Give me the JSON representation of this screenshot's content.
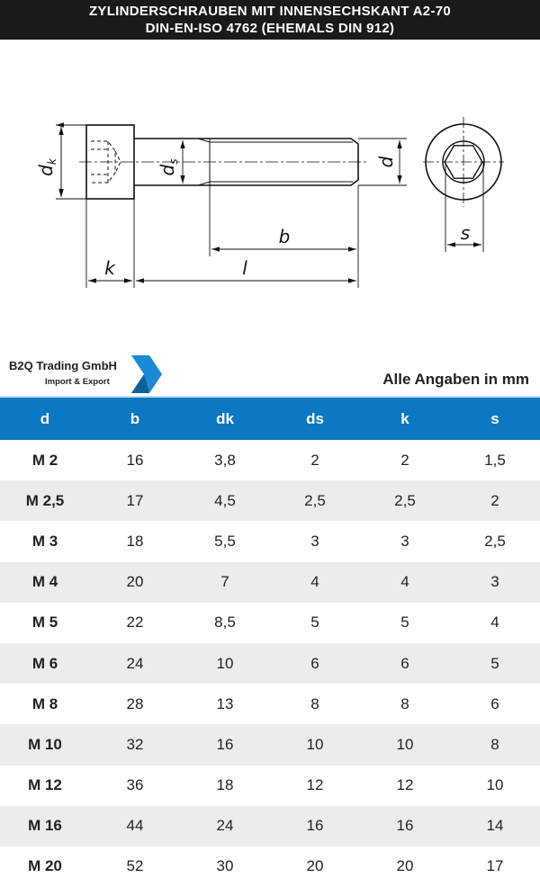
{
  "header": {
    "title_line1": "ZYLINDERSCHRAUBEN MIT INNENSECHSKANT A2-70",
    "title_line2": "DIN-EN-ISO 4762 (EHEMALS DIN 912)"
  },
  "drawing": {
    "labels": {
      "dk": "d",
      "dk_sub": "k",
      "ds": "d",
      "ds_sub": "s",
      "d": "d",
      "b": "b",
      "l": "l",
      "k": "k",
      "s": "s"
    }
  },
  "brand": {
    "name": "B2Q Trading GmbH",
    "tagline": "Import & Export",
    "color": "#1b8ad6"
  },
  "unit_note": "Alle Angaben in mm",
  "table": {
    "header_color": "#0a78c2",
    "columns": [
      "d",
      "b",
      "dk",
      "ds",
      "k",
      "s"
    ],
    "rows": [
      [
        "M 2",
        "16",
        "3,8",
        "2",
        "2",
        "1,5"
      ],
      [
        "M 2,5",
        "17",
        "4,5",
        "2,5",
        "2,5",
        "2"
      ],
      [
        "M 3",
        "18",
        "5,5",
        "3",
        "3",
        "2,5"
      ],
      [
        "M 4",
        "20",
        "7",
        "4",
        "4",
        "3"
      ],
      [
        "M 5",
        "22",
        "8,5",
        "5",
        "5",
        "4"
      ],
      [
        "M 6",
        "24",
        "10",
        "6",
        "6",
        "5"
      ],
      [
        "M 8",
        "28",
        "13",
        "8",
        "8",
        "6"
      ],
      [
        "M 10",
        "32",
        "16",
        "10",
        "10",
        "8"
      ],
      [
        "M 12",
        "36",
        "18",
        "12",
        "12",
        "10"
      ],
      [
        "M 16",
        "44",
        "24",
        "16",
        "16",
        "14"
      ],
      [
        "M 20",
        "52",
        "30",
        "20",
        "20",
        "17"
      ]
    ]
  }
}
